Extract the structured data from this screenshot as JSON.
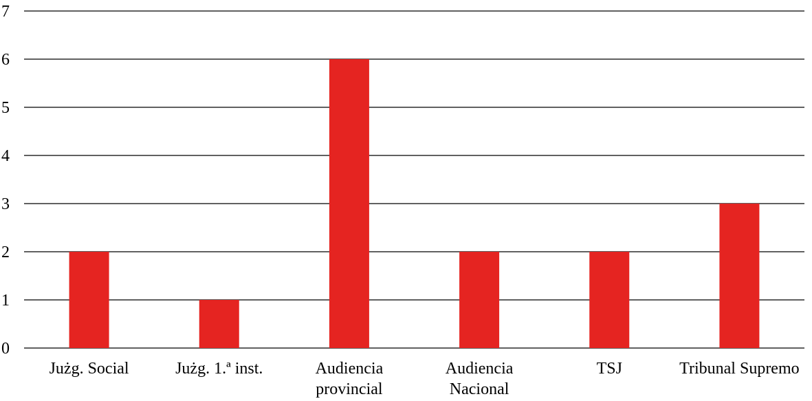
{
  "chart_data": {
    "type": "bar",
    "title": "",
    "xlabel": "",
    "ylabel": "",
    "categories": [
      [
        "Jużg. Social"
      ],
      [
        "Jużg. 1.ª inst."
      ],
      [
        "Audiencia",
        "provincial"
      ],
      [
        "Audiencia",
        "Nacional"
      ],
      [
        "TSJ"
      ],
      [
        "Tribunal Supremo"
      ]
    ],
    "values": [
      2,
      1,
      6,
      2,
      2,
      3
    ],
    "ylim": [
      0,
      7
    ],
    "yticks": [
      0,
      1,
      2,
      3,
      4,
      5,
      6,
      7
    ],
    "grid": true,
    "legend": "none",
    "bar_color": "#e52421",
    "grid_color": "#000000"
  }
}
